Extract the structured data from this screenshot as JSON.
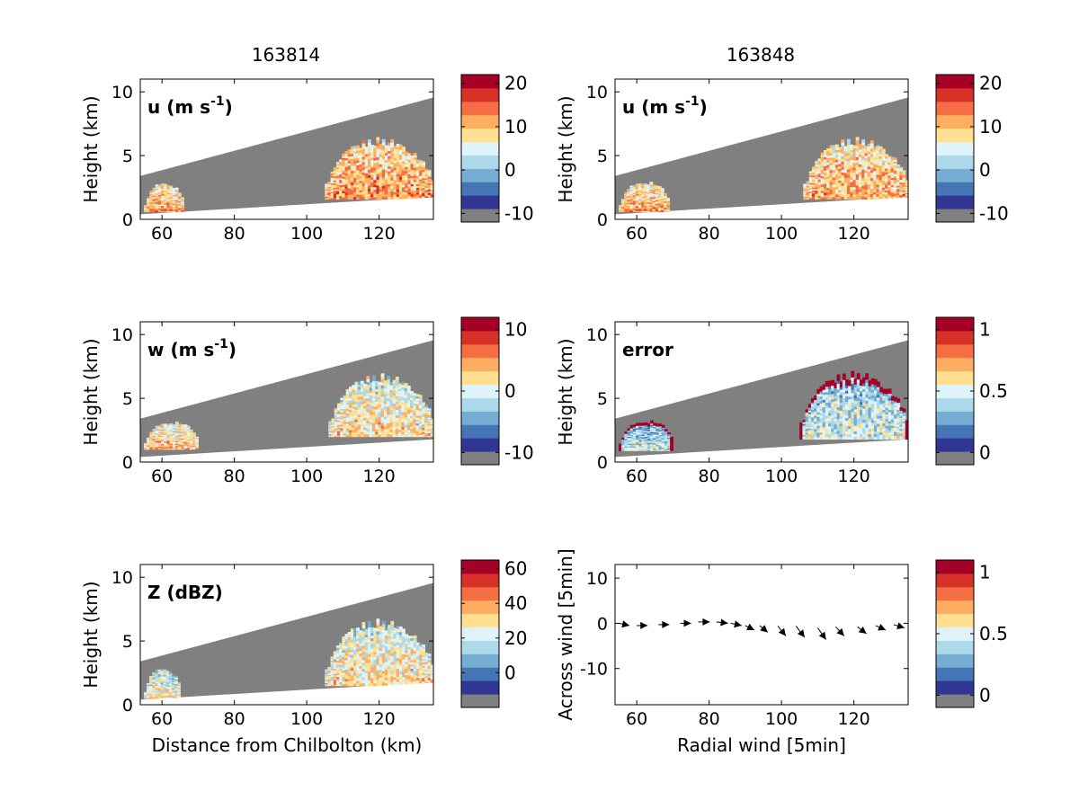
{
  "columns": {
    "left_title": "163814",
    "right_title": "163848"
  },
  "colors": {
    "background": "#ffffff",
    "no_data": "#808080",
    "colormap": [
      "#808080",
      "#313695",
      "#4575b4",
      "#74add1",
      "#abd9e9",
      "#e0f3f8",
      "#fee090",
      "#fdae61",
      "#f46d43",
      "#d73027",
      "#a50026"
    ]
  },
  "chart_data": [
    {
      "id": "u_left",
      "type": "heatmap",
      "panel_label": "u (m s",
      "panel_label_sup": "-1",
      "ylabel": "Height (km)",
      "xlabel": "",
      "xlim": [
        54,
        135
      ],
      "ylim": [
        0,
        11
      ],
      "xticks": [
        "60",
        "80",
        "100",
        "120"
      ],
      "yticks": [
        "0",
        "5",
        "10"
      ],
      "colorbar": {
        "range": [
          -12,
          22
        ],
        "ticks": [
          "20",
          "10",
          "0",
          "-10"
        ]
      },
      "regions": [
        {
          "name": "near_cell",
          "x": [
            55,
            66
          ],
          "y_range": [
            0.6,
            3.0
          ],
          "typical_value": 8
        },
        {
          "name": "main_cell",
          "x": [
            105,
            135
          ],
          "y_range": [
            1.6,
            6.5
          ],
          "typical_value": 9
        }
      ]
    },
    {
      "id": "u_right",
      "type": "heatmap",
      "panel_label": "u (m s",
      "panel_label_sup": "-1",
      "ylabel": "Height (km)",
      "xlabel": "",
      "xlim": [
        54,
        135
      ],
      "ylim": [
        0,
        11
      ],
      "xticks": [
        "60",
        "80",
        "100",
        "120"
      ],
      "yticks": [
        "0",
        "5",
        "10"
      ],
      "colorbar": {
        "range": [
          -12,
          22
        ],
        "ticks": [
          "20",
          "10",
          "0",
          "-10"
        ]
      },
      "regions": [
        {
          "name": "near_cell",
          "x": [
            55,
            69
          ],
          "y_range": [
            0.6,
            3.1
          ],
          "typical_value": 8
        },
        {
          "name": "main_cell",
          "x": [
            106,
            135
          ],
          "y_range": [
            1.6,
            6.5
          ],
          "typical_value": 8
        }
      ]
    },
    {
      "id": "w_left",
      "type": "heatmap",
      "panel_label": "w (m s",
      "panel_label_sup": "-1",
      "ylabel": "Height (km)",
      "xlabel": "",
      "xlim": [
        54,
        135
      ],
      "ylim": [
        0,
        11
      ],
      "xticks": [
        "60",
        "80",
        "100",
        "120"
      ],
      "yticks": [
        "0",
        "5",
        "10"
      ],
      "colorbar": {
        "range": [
          -12,
          12
        ],
        "ticks": [
          "10",
          "0",
          "-10"
        ]
      },
      "regions": [
        {
          "name": "near_cell",
          "x": [
            55,
            70
          ],
          "y_range": [
            1.0,
            3.3
          ],
          "typical_value": 1
        },
        {
          "name": "main_cell",
          "x": [
            106,
            135
          ],
          "y_range": [
            2.0,
            7.0
          ],
          "typical_value": 0
        }
      ]
    },
    {
      "id": "error_right",
      "type": "heatmap",
      "panel_label": "error",
      "panel_label_sup": "",
      "ylabel": "Height (km)",
      "xlabel": "",
      "xlim": [
        54,
        135
      ],
      "ylim": [
        0,
        11
      ],
      "xticks": [
        "60",
        "80",
        "100",
        "120"
      ],
      "yticks": [
        "0",
        "5",
        "10"
      ],
      "colorbar": {
        "range": [
          -0.1,
          1.1
        ],
        "ticks": [
          "1",
          "0.5",
          "0"
        ]
      },
      "regions": [
        {
          "name": "near_cell",
          "x": [
            55,
            70
          ],
          "y_range": [
            0.9,
            3.4
          ],
          "typical_value": 0.3,
          "edge_value": 1.0
        },
        {
          "name": "main_cell",
          "x": [
            105,
            135
          ],
          "y_range": [
            1.8,
            7.2
          ],
          "typical_value": 0.35,
          "edge_value": 1.0
        }
      ]
    },
    {
      "id": "z_left",
      "type": "heatmap",
      "panel_label": "Z (dBZ)",
      "panel_label_sup": "",
      "ylabel": "Height (km)",
      "xlabel": "Distance from Chilbolton (km)",
      "xlim": [
        54,
        135
      ],
      "ylim": [
        0,
        11
      ],
      "xticks": [
        "60",
        "80",
        "100",
        "120"
      ],
      "yticks": [
        "0",
        "5",
        "10"
      ],
      "colorbar": {
        "range": [
          -20,
          65
        ],
        "ticks": [
          "60",
          "40",
          "20",
          "0"
        ]
      },
      "regions": [
        {
          "name": "near_cell",
          "x": [
            55,
            65
          ],
          "y_range": [
            0.5,
            3.0
          ],
          "typical_value": 18
        },
        {
          "name": "main_cell",
          "x": [
            105,
            135
          ],
          "y_range": [
            1.5,
            6.8
          ],
          "typical_value": 22
        }
      ]
    },
    {
      "id": "wind_right",
      "type": "scatter",
      "panel_label": "",
      "panel_label_sup": "",
      "ylabel": "Across wind [5min]",
      "xlabel": "Radial wind [5min]",
      "xlim": [
        54,
        135
      ],
      "ylim": [
        -18,
        13
      ],
      "xticks": [
        "60",
        "80",
        "100",
        "120"
      ],
      "yticks": [
        "10",
        "0",
        "-10"
      ],
      "colorbar": {
        "range": [
          -0.1,
          1.1
        ],
        "ticks": [
          "1",
          "0.5",
          "0"
        ]
      },
      "points": [
        {
          "x": 55,
          "y": 0,
          "u": 3,
          "v": -0.5
        },
        {
          "x": 60,
          "y": -0.5,
          "u": 3,
          "v": 0
        },
        {
          "x": 66,
          "y": -0.3,
          "u": 3,
          "v": 0
        },
        {
          "x": 72,
          "y": 0,
          "u": 3,
          "v": 0
        },
        {
          "x": 77,
          "y": 0.3,
          "u": 3.2,
          "v": 0
        },
        {
          "x": 82,
          "y": 0.3,
          "u": 3.2,
          "v": -0.3
        },
        {
          "x": 86,
          "y": 0,
          "u": 3,
          "v": -0.5
        },
        {
          "x": 90,
          "y": -0.5,
          "u": 2.5,
          "v": -1
        },
        {
          "x": 94,
          "y": -0.5,
          "u": 2.2,
          "v": -1.5
        },
        {
          "x": 99,
          "y": -0.6,
          "u": 2.2,
          "v": -2.2
        },
        {
          "x": 104,
          "y": -0.6,
          "u": 2.4,
          "v": -2.5
        },
        {
          "x": 110,
          "y": -1,
          "u": 2.3,
          "v": -2.6
        },
        {
          "x": 115,
          "y": -0.8,
          "u": 2.3,
          "v": -2
        },
        {
          "x": 121,
          "y": -0.8,
          "u": 2.5,
          "v": -1.5
        },
        {
          "x": 126,
          "y": -0.5,
          "u": 2.8,
          "v": -1
        },
        {
          "x": 131,
          "y": -0.3,
          "u": 3,
          "v": -0.7
        }
      ]
    }
  ]
}
